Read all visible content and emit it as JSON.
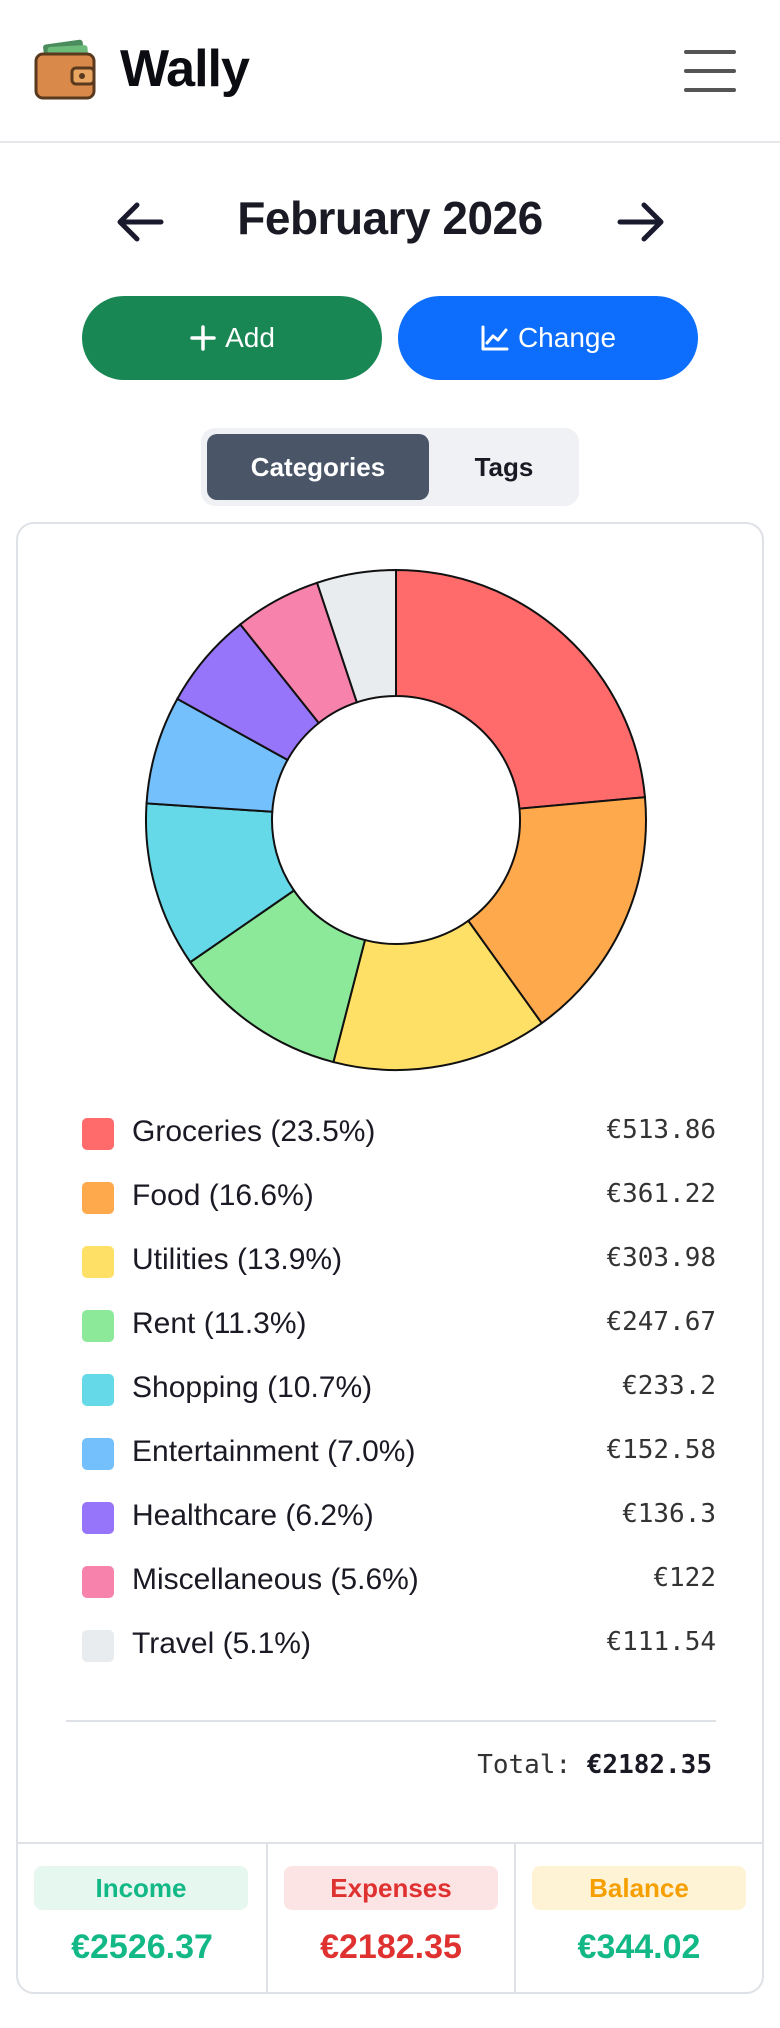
{
  "app": {
    "name": "Wally",
    "logo_icon": "wallet-icon",
    "menu_icon": "hamburger-menu-icon"
  },
  "nav": {
    "month_title": "February 2026",
    "prev_icon": "arrow-left-icon",
    "next_icon": "arrow-right-icon"
  },
  "actions": {
    "add_label": "Add",
    "add_icon": "plus-icon",
    "change_label": "Change",
    "change_icon": "chart-line-icon",
    "add_color": "#198754",
    "change_color": "#0d6efd"
  },
  "view_toggle": {
    "tabs": [
      "Categories",
      "Tags"
    ],
    "active": "Categories"
  },
  "chart_data": {
    "type": "pie",
    "donut": true,
    "categories": [
      "Groceries",
      "Food",
      "Utilities",
      "Rent",
      "Shopping",
      "Entertainment",
      "Healthcare",
      "Miscellaneous",
      "Travel"
    ],
    "values": [
      513.86,
      361.22,
      303.98,
      247.67,
      233.2,
      152.58,
      136.3,
      122,
      111.54
    ],
    "percentages": [
      23.5,
      16.6,
      13.9,
      11.3,
      10.7,
      7.0,
      6.2,
      5.6,
      5.1
    ],
    "colors": [
      "#ff6b6b",
      "#ffa94d",
      "#ffe066",
      "#8ce99a",
      "#66d9e8",
      "#74c0fc",
      "#9775fa",
      "#f783ac",
      "#e9ecef"
    ],
    "legend_position": "below"
  },
  "legend": {
    "items": [
      {
        "label": "Groceries (23.5%)",
        "amount": "€513.86"
      },
      {
        "label": "Food (16.6%)",
        "amount": "€361.22"
      },
      {
        "label": "Utilities (13.9%)",
        "amount": "€303.98"
      },
      {
        "label": "Rent (11.3%)",
        "amount": "€247.67"
      },
      {
        "label": "Shopping (10.7%)",
        "amount": "€233.2"
      },
      {
        "label": "Entertainment (7.0%)",
        "amount": "€152.58"
      },
      {
        "label": "Healthcare (6.2%)",
        "amount": "€136.3"
      },
      {
        "label": "Miscellaneous (5.6%)",
        "amount": "€122"
      },
      {
        "label": "Travel (5.1%)",
        "amount": "€111.54"
      }
    ],
    "total_label": "Total:",
    "total_value": "€2182.35"
  },
  "summary": {
    "income_label": "Income",
    "income_value": "€2526.37",
    "expenses_label": "Expenses",
    "expenses_value": "€2182.35",
    "balance_label": "Balance",
    "balance_value": "€344.02",
    "income_color": "#12b886",
    "income_bg": "#e6f7ef",
    "expenses_color": "#e03131",
    "expenses_bg": "#fde4e4",
    "balance_color": "#f59f00",
    "balance_bg": "#fff3d6",
    "balance_value_color": "#12b886"
  }
}
